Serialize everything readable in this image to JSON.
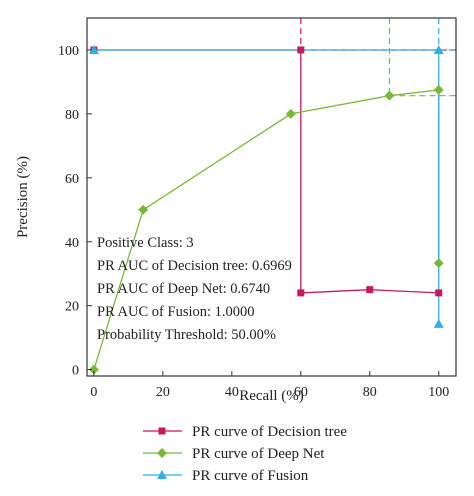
{
  "chart_data": {
    "type": "line",
    "xlabel": "Recall (%)",
    "ylabel": "Precision (%)",
    "xlim": [
      -2,
      105
    ],
    "ylim": [
      -2,
      110
    ],
    "xticks": [
      "0",
      "20",
      "40",
      "60",
      "80",
      "100"
    ],
    "yticks": [
      "0",
      "20",
      "40",
      "60",
      "80",
      "100"
    ],
    "xtick_values": [
      0,
      20,
      40,
      60,
      80,
      100
    ],
    "ytick_values": [
      0,
      20,
      40,
      60,
      80,
      100
    ],
    "grid": false,
    "legend_position": "bottom",
    "series": [
      {
        "name": "PR curve of Decision tree",
        "color": "#c8175d",
        "marker": "square",
        "x": [
          0,
          60,
          60,
          80,
          100
        ],
        "y": [
          100,
          100,
          24,
          25,
          24
        ]
      },
      {
        "name": "PR curve of Deep Net",
        "color": "#79b93a",
        "marker": "diamond",
        "x": [
          0,
          14.3,
          57.1,
          85.7,
          100,
          100
        ],
        "y": [
          0,
          50,
          80,
          85.7,
          87.5,
          33.3
        ]
      },
      {
        "name": "PR curve of Fusion",
        "color": "#2fb1e6",
        "marker": "triangle",
        "x": [
          0,
          100,
          100
        ],
        "y": [
          100,
          100,
          14.3
        ]
      }
    ],
    "threshold_markers": [
      {
        "series": "PR curve of Decision tree",
        "x": 60,
        "y": 100
      },
      {
        "series": "PR curve of Deep Net",
        "x": 85.7,
        "y": 85.7
      },
      {
        "series": "PR curve of Fusion",
        "x": 100,
        "y": 100
      }
    ],
    "annotations": [
      "Positive Class: 3",
      "PR AUC of Decision tree: 0.6969",
      "PR AUC of Deep Net: 0.6740",
      "PR AUC of Fusion: 1.0000",
      "Probability Threshold: 50.00%"
    ]
  }
}
